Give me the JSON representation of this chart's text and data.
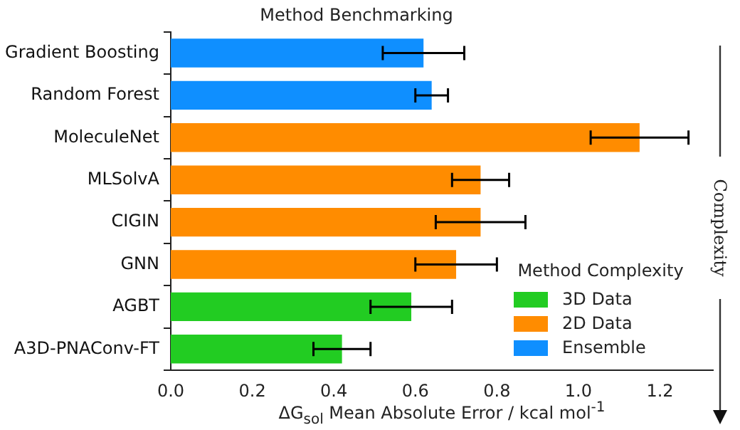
{
  "chart_data": {
    "type": "bar",
    "orientation": "horizontal",
    "title": "Method Benchmarking",
    "xlabel": "ΔG$_{sol}$ Mean Absolute Error / kcal mol$^{-1}$",
    "legend_title": "Method Complexity",
    "legend": "bottom right",
    "grid": false,
    "categories": [
      "Gradient Boosting",
      "Random Forest",
      "MoleculeNet",
      "MLSolvA",
      "CIGIN",
      "GNN",
      "AGBT",
      "A3D-PNAConv-FT"
    ],
    "series": [
      {
        "name": "3D Data",
        "color": "#22cc22",
        "values": [
          null,
          null,
          null,
          null,
          null,
          null,
          0.59,
          0.42
        ],
        "errors": [
          null,
          null,
          null,
          null,
          null,
          null,
          0.1,
          0.07
        ]
      },
      {
        "name": "2D Data",
        "color": "#ff8c00",
        "values": [
          null,
          null,
          1.15,
          0.76,
          0.76,
          0.7,
          null,
          null
        ],
        "errors": [
          null,
          null,
          0.12,
          0.07,
          0.11,
          0.1,
          null,
          null
        ]
      },
      {
        "name": "Ensemble",
        "color": "#0f8fff",
        "values": [
          0.62,
          0.64,
          null,
          null,
          null,
          null,
          null,
          null
        ],
        "errors": [
          0.1,
          0.04,
          null,
          null,
          null,
          null,
          null,
          null
        ]
      }
    ],
    "xlim": [
      0,
      1.33
    ],
    "xticks": [
      {
        "value": 0,
        "label": "0.0"
      },
      {
        "value": 0.2,
        "label": "0.2"
      },
      {
        "value": 0.4,
        "label": "0.4"
      },
      {
        "value": 0.6,
        "label": "0.6"
      },
      {
        "value": 0.8,
        "label": "0.8"
      },
      {
        "value": 1,
        "label": "1.0"
      },
      {
        "value": 1.2,
        "label": "1.2"
      }
    ],
    "annotations": [
      "Complexity"
    ]
  }
}
